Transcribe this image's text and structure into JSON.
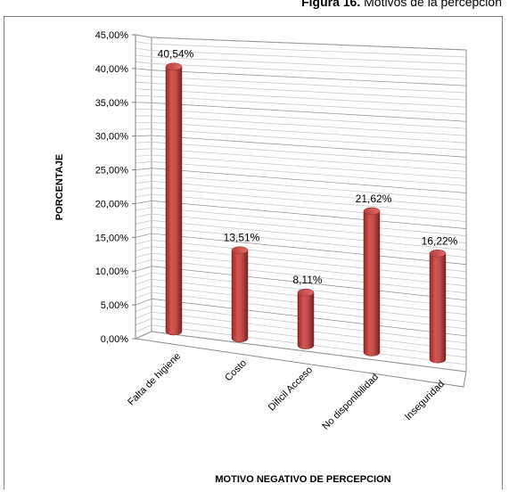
{
  "caption": {
    "bold": "Figura 16.",
    "text": " Motivos de la percepción"
  },
  "chart_data": {
    "type": "bar",
    "categories": [
      "Falta de higiene",
      "Costo",
      "Dificil Acceso",
      "No disponibilidad",
      "Inseguridad"
    ],
    "values": [
      40.54,
      13.51,
      8.11,
      21.62,
      16.22
    ],
    "value_labels": [
      "40,54%",
      "13,51%",
      "8,11%",
      "21,62%",
      "16,22%"
    ],
    "title": "",
    "xlabel": "MOTIVO NEGATIVO DE PERCEPCION",
    "ylabel": "PORCENTAJE",
    "ylim": [
      0,
      45
    ],
    "yticks": [
      "0,00%",
      "5,00%",
      "10,00%",
      "15,00%",
      "20,00%",
      "25,00%",
      "30,00%",
      "35,00%",
      "40,00%",
      "45,00%"
    ],
    "grid": true,
    "bar_color": "#c0504d"
  }
}
